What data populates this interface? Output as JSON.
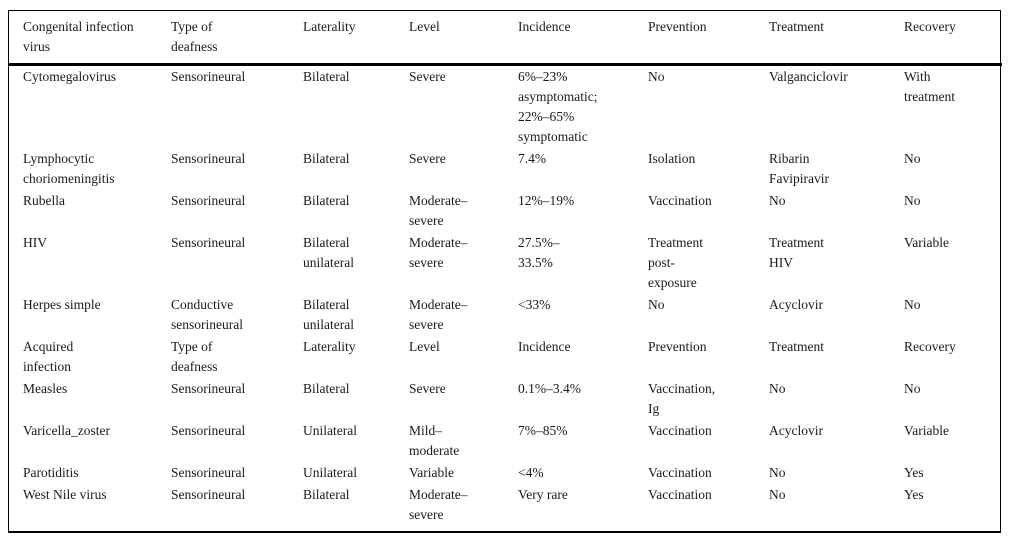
{
  "table": {
    "title_semantic": "Congenital and acquired infection viruses causing deafness",
    "columns": [
      "Congenital infection\nvirus",
      "Type of\ndeafness",
      "Laterality",
      "Level",
      "Incidence",
      "Prevention",
      "Treatment",
      "Recovery"
    ],
    "rows": [
      {
        "name": "row-cytomegalovirus",
        "cells": [
          "Cytomegalovirus",
          "Sensorineural",
          "Bilateral",
          "Severe",
          "6%–23%\nasymptomatic;\n22%–65%\nsymptomatic",
          "No",
          "Valganciclovir",
          "With\ntreatment"
        ]
      },
      {
        "name": "row-lymphocytic-choriomeningitis",
        "cells": [
          "Lymphocytic\nchoriomeningitis",
          "Sensorineural",
          "Bilateral",
          "Severe",
          "7.4%",
          "Isolation",
          "Ribarin\nFavipiravir",
          "No"
        ]
      },
      {
        "name": "row-rubella",
        "cells": [
          "Rubella",
          "Sensorineural",
          "Bilateral",
          "Moderate–\nsevere",
          "12%–19%",
          "Vaccination",
          "No",
          "No"
        ]
      },
      {
        "name": "row-hiv",
        "cells": [
          "HIV",
          "Sensorineural",
          "Bilateral\nunilateral",
          "Moderate–\nsevere",
          "27.5%–\n33.5%",
          "Treatment\npost-\nexposure",
          "Treatment\nHIV",
          "Variable"
        ]
      },
      {
        "name": "row-herpes-simple",
        "cells": [
          "Herpes simple",
          "Conductive\nsensorineural",
          "Bilateral\nunilateral",
          "Moderate–\nsevere",
          "<33%",
          "No",
          "Acyclovir",
          "No"
        ]
      },
      {
        "name": "section-header-row-acquired-infection",
        "cells": [
          "Acquired\ninfection",
          "Type of\ndeafness",
          "Laterality",
          "Level",
          "Incidence",
          "Prevention",
          "Treatment",
          "Recovery"
        ]
      },
      {
        "name": "row-measles",
        "cells": [
          "Measles",
          "Sensorineural",
          "Bilateral",
          "Severe",
          "0.1%–3.4%",
          "Vaccination,\nIg",
          "No",
          "No"
        ]
      },
      {
        "name": "row-varicella-zoster",
        "cells": [
          "Varicella_zoster",
          "Sensorineural",
          "Unilateral",
          "Mild–\nmoderate",
          "7%–85%",
          "Vaccination",
          "Acyclovir",
          "Variable"
        ]
      },
      {
        "name": "row-parotiditis",
        "cells": [
          "Parotiditis",
          "Sensorineural",
          "Unilateral",
          "Variable",
          "<4%",
          "Vaccination",
          "No",
          "Yes"
        ]
      },
      {
        "name": "row-west-nile-virus",
        "cells": [
          "West Nile virus",
          "Sensorineural",
          "Bilateral",
          "Moderate–\nsevere",
          "Very rare",
          "Vaccination",
          "No",
          "Yes"
        ]
      }
    ],
    "colors": {
      "border": "#000000",
      "text": "#1a1a1a",
      "background": "#ffffff"
    }
  }
}
